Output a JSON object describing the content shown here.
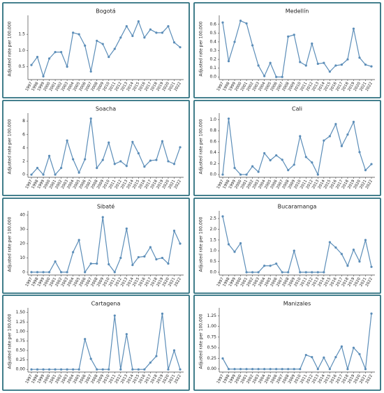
{
  "chart_data": [
    {
      "type": "line",
      "title": "Bogotá",
      "y_label": "Adjusted rate per 100,000",
      "color": "#5b8db8",
      "categories": [
        "1997",
        "1998",
        "1999",
        "2000",
        "2001",
        "2002",
        "2003",
        "2004",
        "2005",
        "2006",
        "2007",
        "2008",
        "2009",
        "2010",
        "2011",
        "2012",
        "2013",
        "2014",
        "2015",
        "2016",
        "2017",
        "2018",
        "2019",
        "2020",
        "2021",
        "2022"
      ],
      "values": [
        0.55,
        0.8,
        0.2,
        0.75,
        0.95,
        0.95,
        0.5,
        1.55,
        1.5,
        1.15,
        0.35,
        1.3,
        1.2,
        0.8,
        1.05,
        1.4,
        1.75,
        1.45,
        1.9,
        1.4,
        1.65,
        1.55,
        1.55,
        1.75,
        1.25,
        1.1
      ],
      "ylim": [
        0.1,
        2.0
      ],
      "yticks": [
        {
          "value": 0.5,
          "label": "0.5"
        },
        {
          "value": 1,
          "label": "1.0"
        },
        {
          "value": 1.5,
          "label": "1.5"
        }
      ]
    },
    {
      "type": "line",
      "title": "Medellín",
      "y_label": "Adjusted rate per 100,000",
      "color": "#5b8db8",
      "categories": [
        "1997",
        "1998",
        "1999",
        "2000",
        "2001",
        "2002",
        "2003",
        "2004",
        "2005",
        "2006",
        "2007",
        "2008",
        "2009",
        "2010",
        "2011",
        "2012",
        "2013",
        "2014",
        "2015",
        "2016",
        "2017",
        "2018",
        "2019",
        "2020",
        "2021",
        "2022"
      ],
      "values": [
        0.62,
        0.18,
        0.4,
        0.64,
        0.61,
        0.36,
        0.13,
        0.01,
        0.16,
        0.0,
        0.0,
        0.46,
        0.48,
        0.17,
        0.13,
        0.38,
        0.15,
        0.16,
        0.06,
        0.13,
        0.14,
        0.2,
        0.55,
        0.22,
        0.14,
        0.12
      ],
      "ylim": [
        -0.03,
        0.67
      ],
      "yticks": [
        {
          "value": 0,
          "label": "0.0"
        },
        {
          "value": 0.1,
          "label": "0.1"
        },
        {
          "value": 0.2,
          "label": "0.2"
        },
        {
          "value": 0.3,
          "label": "0.3"
        },
        {
          "value": 0.4,
          "label": "0.4"
        },
        {
          "value": 0.5,
          "label": "0.5"
        },
        {
          "value": 0.6,
          "label": "0.6"
        }
      ]
    },
    {
      "type": "line",
      "title": "Soacha",
      "y_label": "Adjusted rate per 100,000",
      "color": "#5b8db8",
      "categories": [
        "1997",
        "1998",
        "1999",
        "2000",
        "2001",
        "2002",
        "2003",
        "2004",
        "2005",
        "2006",
        "2007",
        "2008",
        "2009",
        "2010",
        "2011",
        "2012",
        "2013",
        "2014",
        "2015",
        "2016",
        "2017",
        "2018",
        "2019",
        "2020",
        "2021",
        "2022"
      ],
      "values": [
        0,
        1,
        0,
        2.8,
        0,
        1,
        5.1,
        2.3,
        0.3,
        2.3,
        8.4,
        1,
        2.2,
        4.8,
        1.6,
        2,
        1.3,
        4.9,
        3.2,
        1.2,
        2.1,
        2.2,
        5,
        2,
        1.6,
        4.1
      ],
      "ylim": [
        -0.4,
        8.8
      ],
      "yticks": [
        0,
        2,
        4,
        6,
        8
      ]
    },
    {
      "type": "line",
      "title": "Cali",
      "y_label": "Adjusted rate per 100,000",
      "color": "#5b8db8",
      "categories": [
        "1997",
        "1998",
        "1999",
        "2000",
        "2001",
        "2002",
        "2003",
        "2004",
        "2005",
        "2006",
        "2007",
        "2008",
        "2009",
        "2010",
        "2011",
        "2012",
        "2013",
        "2014",
        "2015",
        "2016",
        "2017",
        "2018",
        "2019",
        "2020",
        "2021",
        "2022"
      ],
      "values": [
        0,
        1.02,
        0.12,
        0,
        0,
        0.15,
        0.05,
        0.39,
        0.26,
        0.35,
        0.27,
        0.08,
        0.18,
        0.7,
        0.32,
        0.22,
        0,
        0.62,
        0.7,
        0.92,
        0.52,
        0.73,
        0.96,
        0.41,
        0.08,
        0.19
      ],
      "ylim": [
        -0.05,
        1.07
      ],
      "yticks": [
        {
          "value": 0,
          "label": "0.0"
        },
        {
          "value": 0.2,
          "label": "0.2"
        },
        {
          "value": 0.4,
          "label": "0.4"
        },
        {
          "value": 0.6,
          "label": "0.6"
        },
        {
          "value": 0.8,
          "label": "0.8"
        },
        {
          "value": 1,
          "label": "1.0"
        }
      ]
    },
    {
      "type": "line",
      "title": "Sibaté",
      "y_label": "Adjusted rate per 100,000",
      "color": "#5b8db8",
      "categories": [
        "1997",
        "1998",
        "1999",
        "2000",
        "2001",
        "2002",
        "2003",
        "2004",
        "2005",
        "2006",
        "2007",
        "2008",
        "2009",
        "2010",
        "2011",
        "2012",
        "2013",
        "2014",
        "2015",
        "2016",
        "2017",
        "2018",
        "2019",
        "2020",
        "2021",
        "2022"
      ],
      "values": [
        0,
        0,
        0,
        0,
        7.5,
        0,
        0,
        14,
        22.5,
        0,
        6,
        6,
        38.5,
        5.5,
        0,
        10,
        30.5,
        5,
        10.5,
        11,
        17.5,
        9,
        10,
        6,
        29,
        20
      ],
      "ylim": [
        -2,
        41
      ],
      "yticks": [
        0,
        10,
        20,
        30,
        40
      ]
    },
    {
      "type": "line",
      "title": "Bucaramanga",
      "y_label": "Adjusted rate per 100,000",
      "color": "#5b8db8",
      "categories": [
        "1997",
        "1998",
        "1999",
        "2000",
        "2001",
        "2002",
        "2003",
        "2004",
        "2005",
        "2006",
        "2007",
        "2008",
        "2009",
        "2010",
        "2011",
        "2012",
        "2013",
        "2014",
        "2015",
        "2016",
        "2017",
        "2018",
        "2019",
        "2020",
        "2021",
        "2022"
      ],
      "values": [
        2.6,
        1.3,
        0.95,
        1.35,
        0,
        0,
        0,
        0.3,
        0.3,
        0.4,
        0,
        0,
        1.0,
        0,
        0,
        0,
        0,
        0,
        1.4,
        1.15,
        0.85,
        0.3,
        1.05,
        0.5,
        1.5,
        0.25
      ],
      "ylim": [
        -0.13,
        2.73
      ],
      "yticks": [
        {
          "value": 0,
          "label": "0.0"
        },
        {
          "value": 0.5,
          "label": "0.5"
        },
        {
          "value": 1,
          "label": "1.0"
        },
        {
          "value": 1.5,
          "label": "1.5"
        },
        {
          "value": 2,
          "label": "2.0"
        },
        {
          "value": 2.5,
          "label": "2.5"
        }
      ]
    },
    {
      "type": "line",
      "title": "Cartagena",
      "y_label": "Adjusted rate per 100,000",
      "color": "#5b8db8",
      "categories": [
        "1997",
        "1998",
        "1999",
        "2000",
        "2001",
        "2002",
        "2003",
        "2004",
        "2005",
        "2006",
        "2007",
        "2008",
        "2009",
        "2010",
        "2011",
        "2012",
        "2013",
        "2014",
        "2015",
        "2016",
        "2017",
        "2018",
        "2019",
        "2020",
        "2021",
        "2022"
      ],
      "values": [
        0,
        0,
        0,
        0,
        0,
        0,
        0,
        0,
        0,
        0.8,
        0.28,
        0,
        0,
        0,
        1.42,
        0,
        0.93,
        0,
        0,
        0,
        0.18,
        0.35,
        1.47,
        0,
        0.5,
        0
      ],
      "ylim": [
        -0.07,
        1.55
      ],
      "yticks": [
        {
          "value": 0,
          "label": "0.00"
        },
        {
          "value": 0.25,
          "label": "0.25"
        },
        {
          "value": 0.5,
          "label": "0.50"
        },
        {
          "value": 0.75,
          "label": "0.75"
        },
        {
          "value": 1,
          "label": "1.00"
        },
        {
          "value": 1.25,
          "label": "1.25"
        },
        {
          "value": 1.5,
          "label": "1.50"
        }
      ]
    },
    {
      "type": "line",
      "title": "Manizales",
      "y_label": "Adjusted rate per 100,000",
      "color": "#5b8db8",
      "categories": [
        "1997",
        "1998",
        "1999",
        "2000",
        "2001",
        "2002",
        "2003",
        "2004",
        "2005",
        "2006",
        "2007",
        "2008",
        "2009",
        "2010",
        "2011",
        "2012",
        "2013",
        "2014",
        "2015",
        "2016",
        "2017",
        "2018",
        "2019",
        "2020",
        "2021",
        "2022"
      ],
      "values": [
        0.25,
        0,
        0,
        0,
        0,
        0,
        0,
        0,
        0,
        0,
        0,
        0,
        0,
        0,
        0.33,
        0.28,
        0,
        0.27,
        0,
        0.28,
        0.53,
        0,
        0.5,
        0.35,
        0,
        1.3
      ],
      "ylim": [
        -0.07,
        1.37
      ],
      "yticks": [
        {
          "value": 0,
          "label": "0.00"
        },
        {
          "value": 0.25,
          "label": "0.25"
        },
        {
          "value": 0.5,
          "label": "0.50"
        },
        {
          "value": 0.75,
          "label": "0.75"
        },
        {
          "value": 1,
          "label": "1.00"
        },
        {
          "value": 1.25,
          "label": "1.25"
        }
      ]
    }
  ]
}
